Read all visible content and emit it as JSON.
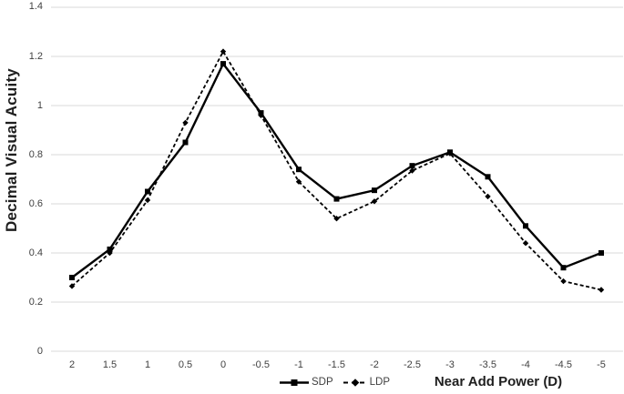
{
  "chart_data": {
    "type": "line",
    "title": "",
    "xlabel": "Near Add Power (D)",
    "ylabel": "Decimal Visual Acuity",
    "categories": [
      "2",
      "1.5",
      "1",
      "0.5",
      "0",
      "-0.5",
      "-1",
      "-1.5",
      "-2",
      "-2.5",
      "-3",
      "-3.5",
      "-4",
      "-4.5",
      "-5"
    ],
    "y_tick_labels": [
      "0",
      "0.2",
      "0.4",
      "0.6",
      "0.8",
      "1",
      "1.2",
      "1.4"
    ],
    "y_tick_step": 0.2,
    "ylim": [
      0,
      1.4
    ],
    "grid": "horizontal",
    "legend_position": "bottom-center",
    "series": [
      {
        "name": "SDP",
        "line_style": "solid",
        "marker": "square",
        "color": "#000000",
        "values": [
          0.3,
          0.415,
          0.65,
          0.85,
          1.17,
          0.97,
          0.74,
          0.62,
          0.655,
          0.755,
          0.81,
          0.71,
          0.51,
          0.34,
          0.4
        ]
      },
      {
        "name": "LDP",
        "line_style": "dashed",
        "marker": "diamond",
        "color": "#000000",
        "values": [
          0.265,
          0.4,
          0.615,
          0.93,
          1.22,
          0.96,
          0.69,
          0.54,
          0.61,
          0.735,
          0.805,
          0.63,
          0.44,
          0.285,
          0.25
        ]
      }
    ],
    "colors": {
      "background": "#ffffff",
      "gridline": "#d9d9d9",
      "tick_text": "#404040",
      "title_text": "#1f1f1f",
      "line": "#000000"
    }
  }
}
